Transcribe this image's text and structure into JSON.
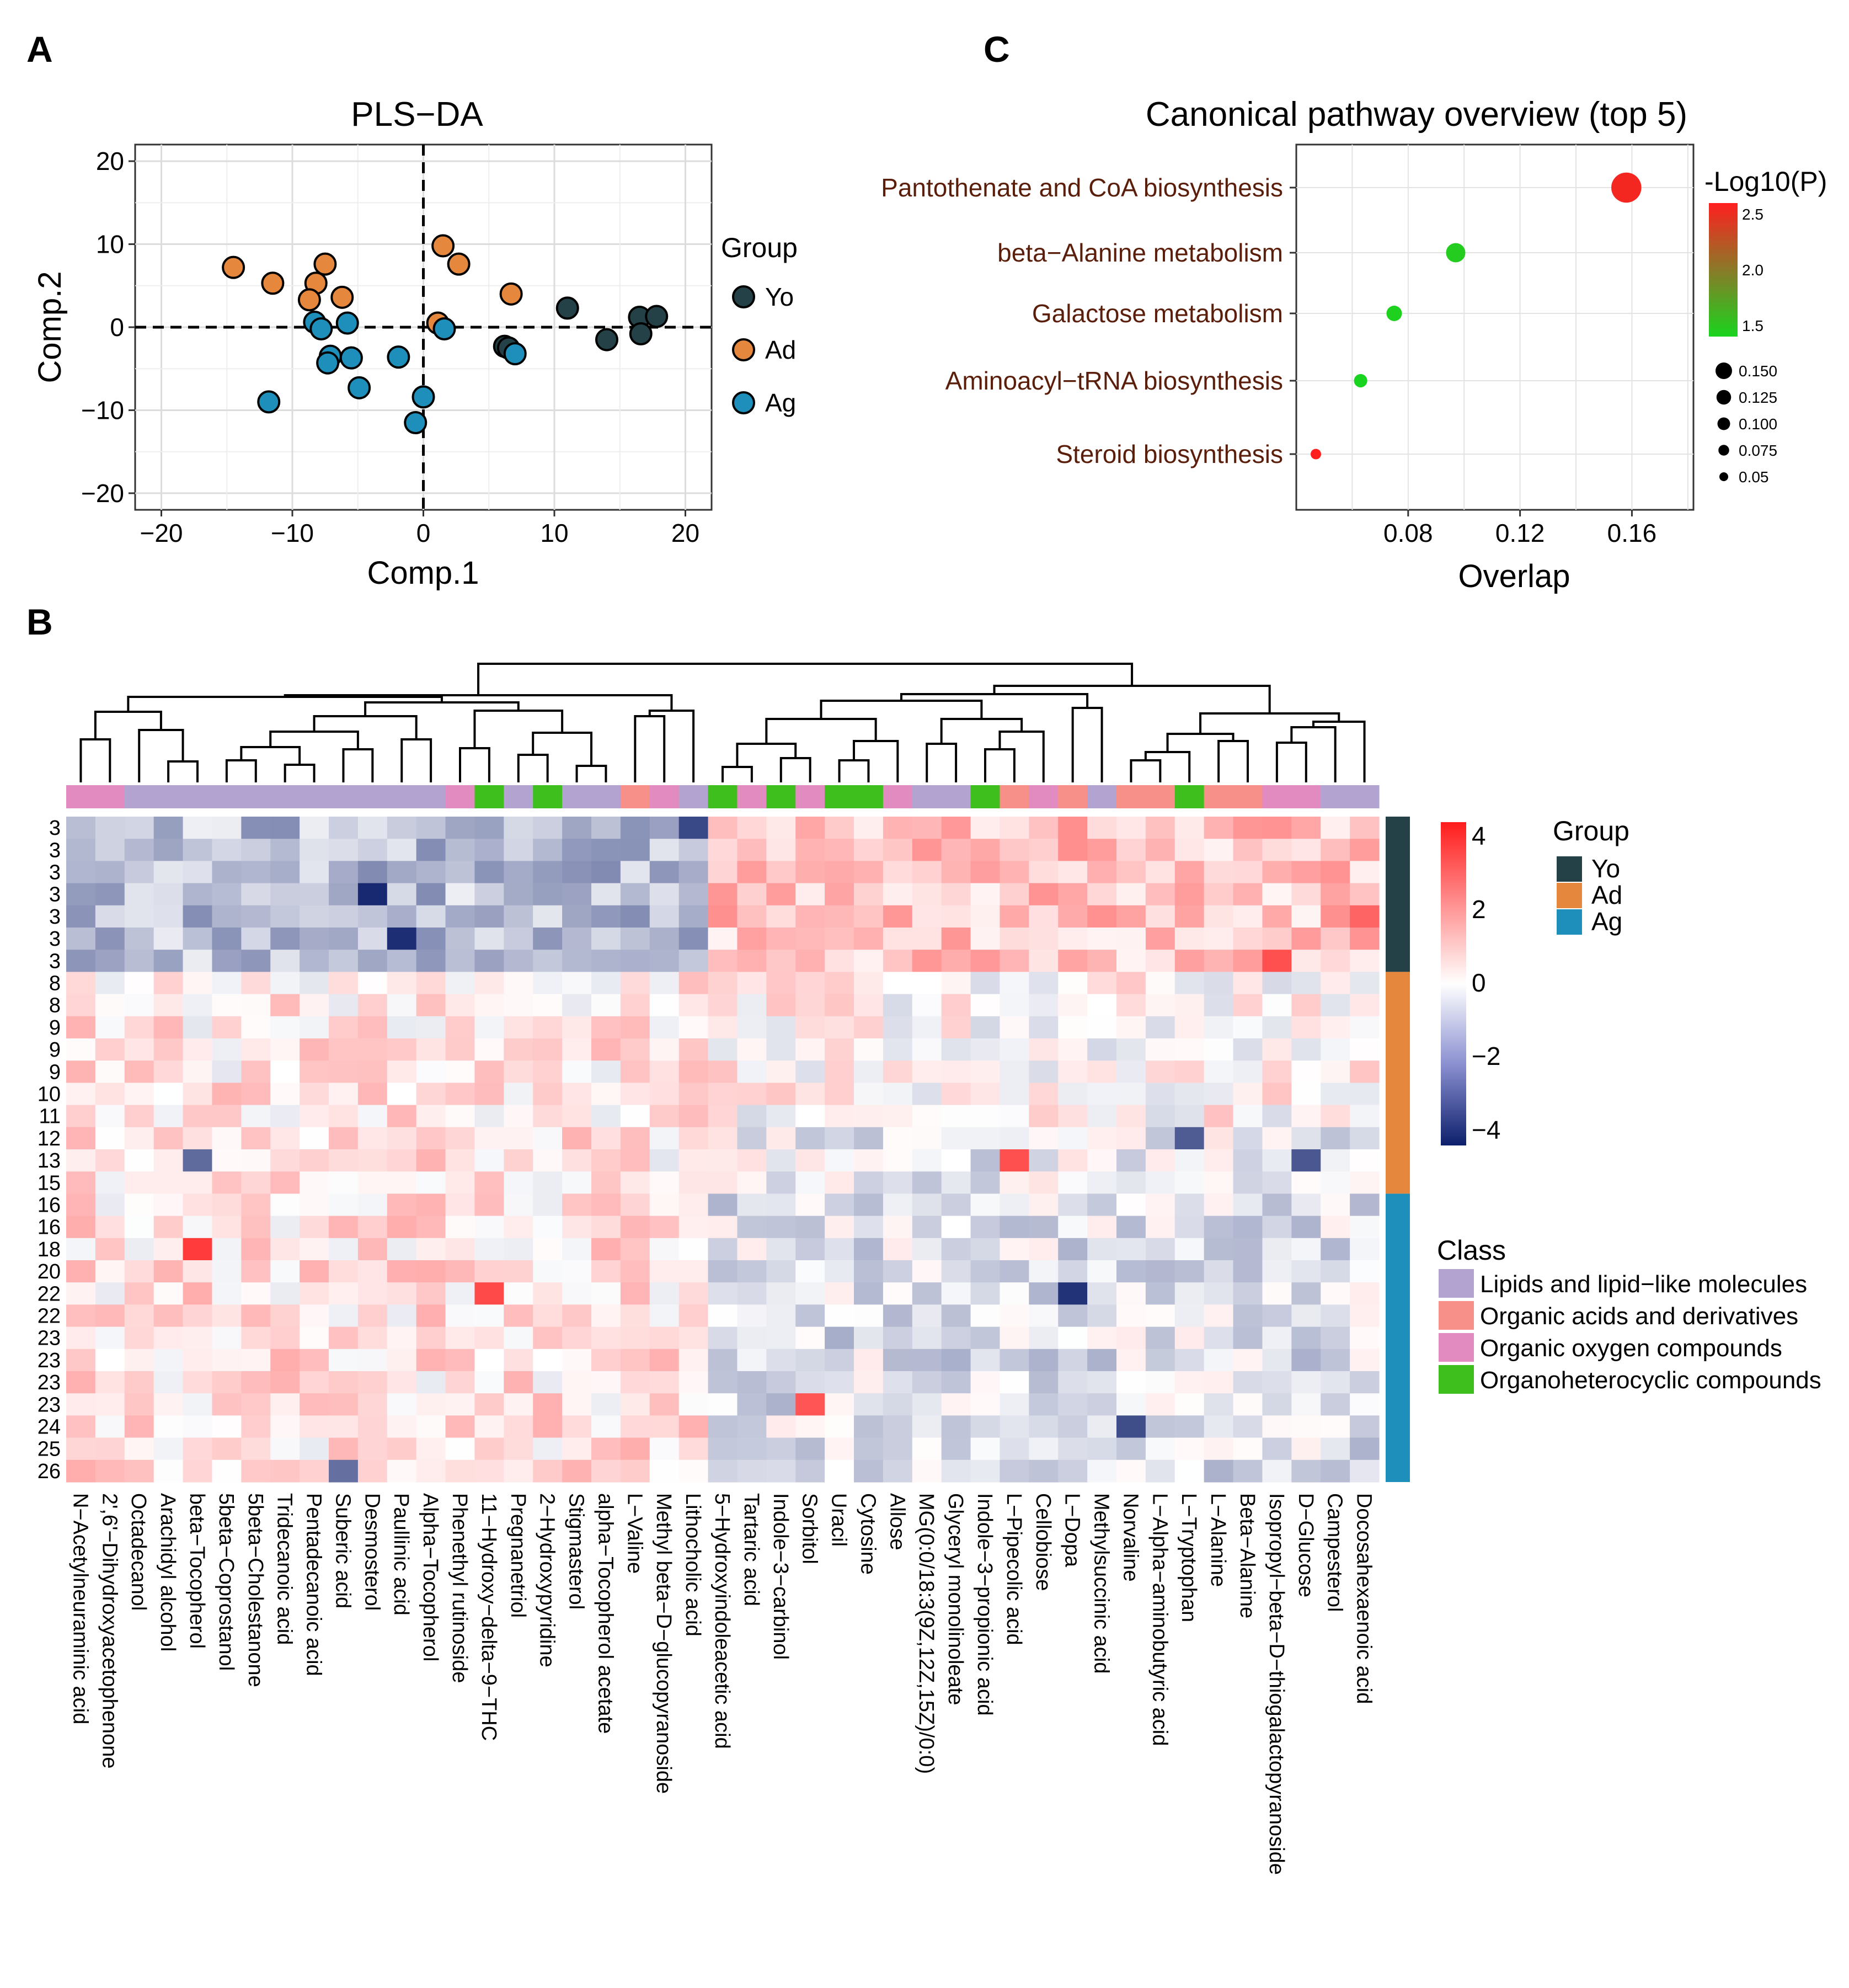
{
  "panels": {
    "a": "A",
    "b": "B",
    "c": "C"
  },
  "colors": {
    "Yo": "#244147",
    "Ad": "#e5873d",
    "Ag": "#1e8fbb",
    "Lipids": "#b3a3d1",
    "Organic acids": "#f69088",
    "Organic oxygen": "#e28bc0",
    "Organoheterocyclic": "#3fbf1d",
    "heat_low": "#0d1f6b",
    "heat_mid": "#ffffff",
    "heat_high": "#ff1c1c",
    "grad_top": "#ff1f1f",
    "grad_mid": "#8a7a28",
    "grad_bottom": "#19d41e"
  },
  "chart_data": [
    {
      "type": "scatter",
      "title": "PLS−DA",
      "xlabel": "Comp.1",
      "ylabel": "Comp.2",
      "xlim": [
        -22,
        22
      ],
      "ylim": [
        -22,
        22
      ],
      "xticks": [
        -20,
        -10,
        0,
        10,
        20
      ],
      "yticks": [
        20,
        10,
        0,
        -10,
        -20
      ],
      "xtick_labels": [
        "−20",
        "−10",
        "0",
        "10",
        "20"
      ],
      "ytick_labels": [
        "20",
        "10",
        "0",
        "−10",
        "−20"
      ],
      "legend_title": "Group",
      "series": [
        {
          "name": "Yo",
          "x": [
            11,
            14,
            16.5,
            16.6,
            17.8,
            6.2,
            6.5
          ],
          "y": [
            2.3,
            -1.5,
            1.2,
            -0.8,
            1.3,
            -2.3,
            -2.5
          ]
        },
        {
          "name": "Ad",
          "x": [
            -14.5,
            -11.5,
            -7.5,
            -8.2,
            -8.7,
            -6.2,
            1.5,
            2.7,
            6.7,
            1.1
          ],
          "y": [
            7.2,
            5.3,
            7.6,
            5.3,
            3.3,
            3.6,
            9.8,
            7.6,
            4.0,
            0.5
          ]
        },
        {
          "name": "Ag",
          "x": [
            -11.8,
            -8.3,
            -7.8,
            -7.1,
            -7.3,
            -5.8,
            -5.5,
            -4.9,
            -1.9,
            0,
            -0.6,
            1.6,
            7
          ],
          "y": [
            -9,
            0.6,
            -0.2,
            -3.5,
            -4.3,
            0.5,
            -3.7,
            -7.3,
            -3.6,
            -8.4,
            -11.5,
            -0.2,
            -3.2
          ]
        }
      ]
    },
    {
      "type": "scatter",
      "title": "Canonical pathway overview (top 5)",
      "xlabel": "Overlap",
      "xlim": [
        0.04,
        0.182
      ],
      "xticks": [
        0.08,
        0.12,
        0.16
      ],
      "xtick_labels": [
        "0.08",
        "0.12",
        "0.16"
      ],
      "categories": [
        "Pantothenate and CoA biosynthesis",
        "beta−Alanine metabolism",
        "Galactose metabolism",
        "Aminoacyl−tRNA biosynthesis",
        "Steroid biosynthesis"
      ],
      "overlap": [
        0.158,
        0.097,
        0.075,
        0.063,
        0.047
      ],
      "neg_log10_p": [
        2.55,
        1.55,
        1.52,
        1.5,
        2.6
      ],
      "size_legend_title": "-Log10(P)",
      "color_ticks": [
        2.5,
        2.0,
        1.5
      ],
      "color_tick_labels": [
        "2.5",
        "2.0",
        "1.5"
      ],
      "size_legend": [
        0.15,
        0.125,
        0.1,
        0.075,
        0.05
      ],
      "size_legend_labels": [
        "0.150",
        "0.125",
        "0.100",
        "0.075",
        "0.05"
      ]
    },
    {
      "type": "heatmap",
      "row_labels": [
        "3",
        "3",
        "3",
        "3",
        "3",
        "3",
        "3",
        "8",
        "8",
        "9",
        "9",
        "9",
        "10",
        "11",
        "12",
        "13",
        "15",
        "16",
        "16",
        "18",
        "20",
        "22",
        "22",
        "23",
        "23",
        "23",
        "23",
        "24",
        "25",
        "26"
      ],
      "row_groups": [
        "Yo",
        "Yo",
        "Yo",
        "Yo",
        "Yo",
        "Yo",
        "Yo",
        "Ad",
        "Ad",
        "Ad",
        "Ad",
        "Ad",
        "Ad",
        "Ad",
        "Ad",
        "Ad",
        "Ad",
        "Ag",
        "Ag",
        "Ag",
        "Ag",
        "Ag",
        "Ag",
        "Ag",
        "Ag",
        "Ag",
        "Ag",
        "Ag",
        "Ag",
        "Ag"
      ],
      "columns": [
        "N−Acetylneuraminic acid",
        "2',6'−Dihydroxyacetophenone",
        "Octadecanol",
        "Arachidyl alcohol",
        "beta−Tocopherol",
        "5beta−Coprostanol",
        "5beta−Cholestanone",
        "Tridecanoic acid",
        "Pentadecanoic acid",
        "Suberic acid",
        "Desmosterol",
        "Paullinic acid",
        "Alpha−Tocopherol",
        "Phenethyl rutinoside",
        "11−Hydroxy−delta−9−THC",
        "Pregnanetriol",
        "2−Hydroxypyridine",
        "Stigmasterol",
        "alpha−Tocopherol acetate",
        "L−Valine",
        "Methyl beta−D−glucopyranoside",
        "Lithocholic acid",
        "5−Hydroxyindoleacetic acid",
        "Tartaric acid",
        "Indole−3−carbinol",
        "Sorbitol",
        "Uracil",
        "Cytosine",
        "Allose",
        "MG(0:0/18:3(9Z,12Z,15Z)/0:0)",
        "Glyceryl monolinoleate",
        "Indole−3−propionic acid",
        "L−Pipecolic acid",
        "Cellobiose",
        "L−Dopa",
        "Methylsuccinic acid",
        "Norvaline",
        "L−Alpha−aminobutyric acid",
        "L−Tryptophan",
        "L−Alanine",
        "Beta−Alanine",
        "Isopropyl−beta−D−thiogalactopyranoside",
        "D−Glucose",
        "Campesterol",
        "Docosahexaenoic acid"
      ],
      "column_classes": [
        "Organic oxygen",
        "Organic oxygen",
        "Lipids",
        "Lipids",
        "Lipids",
        "Lipids",
        "Lipids",
        "Lipids",
        "Lipids",
        "Lipids",
        "Lipids",
        "Lipids",
        "Lipids",
        "Organic oxygen",
        "Organoheterocyclic",
        "Lipids",
        "Organoheterocyclic",
        "Lipids",
        "Lipids",
        "Organic acids",
        "Organic oxygen",
        "Lipids",
        "Organoheterocyclic",
        "Organic oxygen",
        "Organoheterocyclic",
        "Organic oxygen",
        "Organoheterocyclic",
        "Organoheterocyclic",
        "Organic oxygen",
        "Lipids",
        "Lipids",
        "Organoheterocyclic",
        "Organic acids",
        "Organic oxygen",
        "Organic acids",
        "Lipids",
        "Organic acids",
        "Organic acids",
        "Organoheterocyclic",
        "Organic acids",
        "Organic acids",
        "Organic oxygen",
        "Organic oxygen",
        "Lipids",
        "Lipids"
      ],
      "value_range": [
        -4.4,
        4.4
      ],
      "colorbar_ticks": [
        4,
        2,
        0,
        -2,
        -4
      ],
      "colorbar_labels": [
        "4",
        "2",
        "0",
        "−2",
        "−4"
      ],
      "group_legend_title": "Group",
      "group_legend": [
        "Yo",
        "Ad",
        "Ag"
      ],
      "class_legend_title": "Class",
      "class_legend": [
        {
          "key": "Lipids",
          "label": "Lipids and lipid−like molecules"
        },
        {
          "key": "Organic acids",
          "label": "Organic acids and derivatives"
        },
        {
          "key": "Organic oxygen",
          "label": "Organic oxygen compounds"
        },
        {
          "key": "Organoheterocyclic",
          "label": "Organoheterocyclic compounds"
        }
      ],
      "special_cells": [
        {
          "row": 3,
          "col": 10,
          "value": -4.2
        },
        {
          "row": 5,
          "col": 11,
          "value": -4.1
        },
        {
          "row": 0,
          "col": 21,
          "value": -3.6
        },
        {
          "row": 19,
          "col": 4,
          "value": 3.8
        },
        {
          "row": 21,
          "col": 14,
          "value": 3.5
        },
        {
          "row": 15,
          "col": 32,
          "value": 3.4
        },
        {
          "row": 6,
          "col": 41,
          "value": 3.4
        },
        {
          "row": 26,
          "col": 25,
          "value": 3.3
        },
        {
          "row": 21,
          "col": 34,
          "value": -4.0
        },
        {
          "row": 27,
          "col": 36,
          "value": -3.5
        },
        {
          "row": 14,
          "col": 38,
          "value": -3.2
        },
        {
          "row": 15,
          "col": 42,
          "value": -3.3
        },
        {
          "row": 4,
          "col": 44,
          "value": 3.0
        },
        {
          "row": 29,
          "col": 9,
          "value": -2.8
        },
        {
          "row": 15,
          "col": 4,
          "value": -2.9
        }
      ]
    }
  ]
}
